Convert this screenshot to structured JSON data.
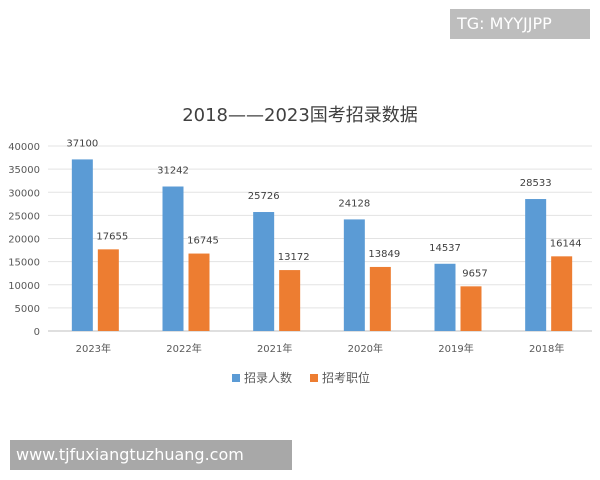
{
  "watermarks": {
    "top_right": "TG: MYYJJPP",
    "bottom_left": "www.tjfuxiangtuzhuang.com"
  },
  "chart_data": {
    "type": "bar",
    "title": "2018——2023国考招录数据",
    "categories": [
      "2023年",
      "2022年",
      "2021年",
      "2020年",
      "2019年",
      "2018年"
    ],
    "series": [
      {
        "name": "招录人数",
        "color": "#5b9bd5",
        "values": [
          37100,
          31242,
          25726,
          24128,
          14537,
          28533
        ]
      },
      {
        "name": "招考职位",
        "color": "#ed7d31",
        "values": [
          17655,
          16745,
          13172,
          13849,
          9657,
          16144
        ]
      }
    ],
    "ylim": [
      0,
      40000
    ],
    "yticks": [
      "0",
      "5000",
      "10000",
      "15000",
      "20000",
      "25000",
      "30000",
      "35000",
      "40000"
    ],
    "grid": true,
    "legend_position": "bottom"
  }
}
